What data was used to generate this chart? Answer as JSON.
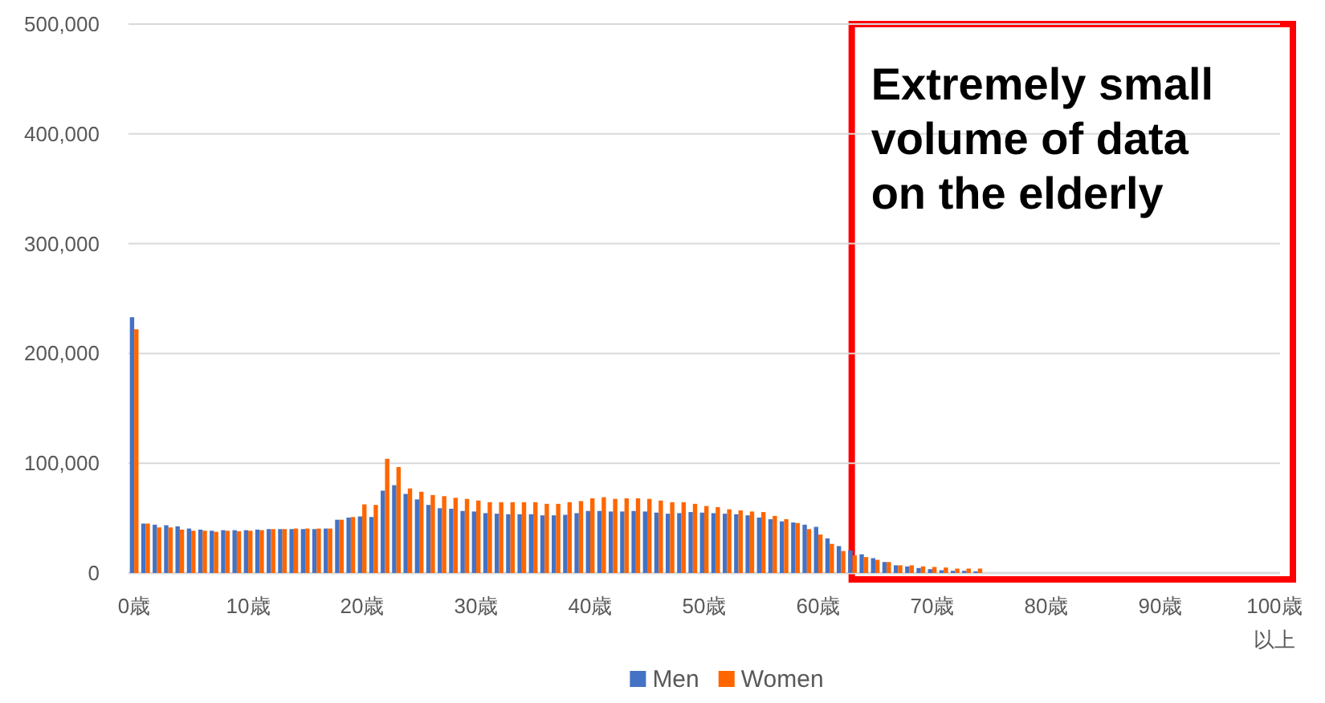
{
  "chart_data": {
    "type": "bar",
    "categories": [
      "0歳",
      null,
      null,
      null,
      null,
      null,
      null,
      null,
      null,
      null,
      "10歳",
      null,
      null,
      null,
      null,
      null,
      null,
      null,
      null,
      null,
      "20歳",
      null,
      null,
      null,
      null,
      null,
      null,
      null,
      null,
      null,
      "30歳",
      null,
      null,
      null,
      null,
      null,
      null,
      null,
      null,
      null,
      "40歳",
      null,
      null,
      null,
      null,
      null,
      null,
      null,
      null,
      null,
      "50歳",
      null,
      null,
      null,
      null,
      null,
      null,
      null,
      null,
      null,
      "60歳",
      null,
      null,
      null,
      null,
      null,
      null,
      null,
      null,
      null,
      "70歳",
      null,
      null,
      null,
      null,
      null,
      null,
      null,
      null,
      null,
      "80歳",
      null,
      null,
      null,
      null,
      null,
      null,
      null,
      null,
      null,
      "90歳",
      null,
      null,
      null,
      null,
      null,
      null,
      null,
      null,
      null,
      "100歳以上"
    ],
    "series": [
      {
        "name": "Men",
        "color": "#4472c4",
        "values": [
          233000,
          45000,
          44000,
          43500,
          42500,
          40500,
          39500,
          38500,
          39000,
          39000,
          39000,
          39500,
          40000,
          40000,
          40000,
          40000,
          40000,
          40500,
          48500,
          50500,
          51500,
          51000,
          75000,
          80000,
          72000,
          67000,
          62000,
          59000,
          58500,
          56500,
          56000,
          54500,
          54000,
          53500,
          53500,
          53500,
          52500,
          52500,
          53000,
          54500,
          56500,
          56500,
          56000,
          56000,
          56500,
          56000,
          55000,
          54000,
          54500,
          55500,
          55000,
          54500,
          54000,
          53500,
          52500,
          50500,
          49000,
          47000,
          46000,
          44000,
          42000,
          31500,
          24500,
          20500,
          17000,
          13500,
          10000,
          7000,
          6000,
          4500,
          3500,
          2500,
          2000,
          2000,
          1500,
          0,
          0,
          0,
          0,
          0,
          0,
          0,
          0,
          0,
          0,
          0,
          0,
          0,
          0,
          0,
          0,
          0,
          0,
          0,
          0,
          0,
          0,
          0,
          0,
          0,
          0
        ]
      },
      {
        "name": "Women",
        "color": "#ff6600",
        "values": [
          222000,
          45000,
          41500,
          41500,
          39500,
          38500,
          38500,
          37500,
          38500,
          38000,
          38500,
          39000,
          40000,
          40000,
          40500,
          40500,
          40500,
          40500,
          48500,
          51000,
          62500,
          62000,
          104000,
          96500,
          77000,
          74000,
          71000,
          70000,
          68500,
          67500,
          66000,
          64500,
          64500,
          64500,
          64500,
          64500,
          63000,
          63000,
          64500,
          65500,
          68000,
          69000,
          67500,
          68000,
          68000,
          67500,
          66000,
          64500,
          64500,
          63000,
          61000,
          60000,
          58000,
          57000,
          56000,
          55500,
          52000,
          49000,
          45500,
          40000,
          35000,
          26500,
          20000,
          16000,
          14500,
          12000,
          10000,
          7000,
          7000,
          6000,
          5500,
          5000,
          4000,
          4000,
          4000,
          0,
          0,
          0,
          0,
          0,
          0,
          0,
          0,
          0,
          0,
          0,
          0,
          0,
          0,
          0,
          0,
          0,
          0,
          0,
          0,
          0,
          0,
          0,
          0,
          0,
          0
        ]
      }
    ],
    "ylim": [
      0,
      500000
    ],
    "yticks": [
      {
        "value": 0,
        "label": "0"
      },
      {
        "value": 100000,
        "label": "100,000"
      },
      {
        "value": 200000,
        "label": "200,000"
      },
      {
        "value": 300000,
        "label": "300,000"
      },
      {
        "value": 400000,
        "label": "400,000"
      },
      {
        "value": 500000,
        "label": "500,000"
      }
    ],
    "grid": "y",
    "legend": "bottom",
    "annotations": [
      "Extremely small volume of data on the elderly"
    ]
  }
}
